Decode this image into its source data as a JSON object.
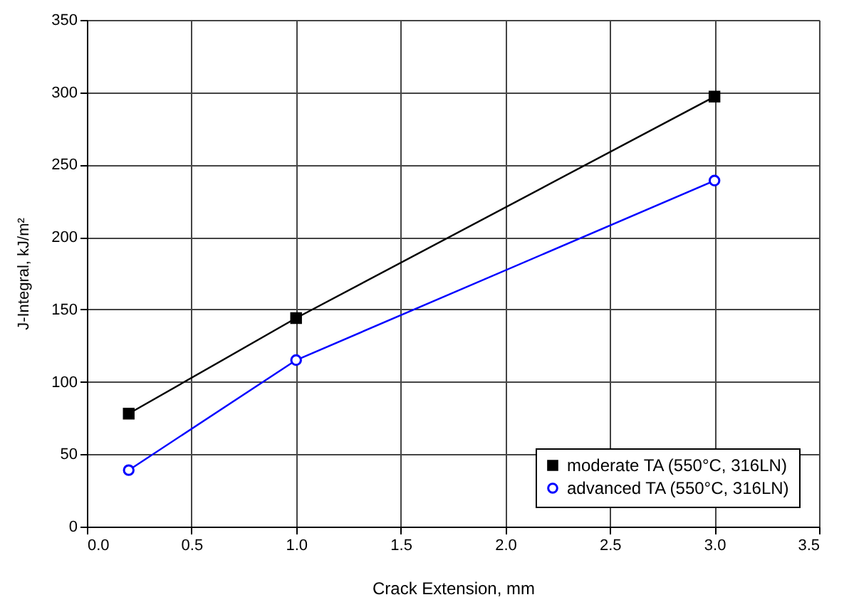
{
  "chart_data": {
    "type": "line",
    "xlabel": "Crack Extension, mm",
    "ylabel": "J-Integral, kJ/m²",
    "x": [
      0.2,
      1.0,
      3.0
    ],
    "series": [
      {
        "name": "moderate TA (550°C, 316LN)",
        "color": "#000000",
        "values": [
          78,
          144,
          297
        ],
        "marker": "square"
      },
      {
        "name": "advanced TA (550°C, 316LN)",
        "color": "#0000ff",
        "values": [
          39,
          115,
          239
        ],
        "marker": "circle"
      }
    ],
    "xlim": [
      0.0,
      3.5
    ],
    "xticks": [
      {
        "value": 0,
        "label": "0.0"
      },
      0.5,
      {
        "value": 1,
        "label": "1.0"
      },
      1.5,
      {
        "value": 2,
        "label": "2.0"
      },
      2.5,
      {
        "value": 3,
        "label": "3.0"
      },
      3.5
    ],
    "ylim": [
      0,
      350
    ],
    "yticks": [
      0,
      50,
      100,
      150,
      200,
      250,
      300,
      350
    ],
    "grid": true,
    "legend": "bottom right",
    "line_style": "solid"
  }
}
